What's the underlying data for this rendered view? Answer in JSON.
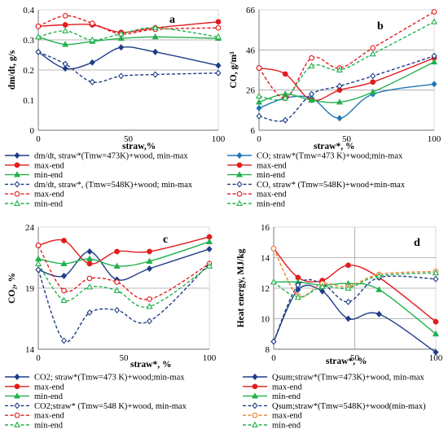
{
  "chart_data": [
    {
      "type": "line",
      "panel_label": "a",
      "ylabel": "dm/dt, g/s",
      "xlabel": "straw,%",
      "xlim": [
        0,
        100
      ],
      "ylim": [
        0.0,
        0.4
      ],
      "yticks": [
        0,
        0.1,
        0.2,
        0.3,
        0.4
      ],
      "yticklabels": [
        "0",
        "0.1",
        "0.2",
        "0.3",
        "0.4"
      ],
      "xticks": [
        0,
        50,
        100
      ],
      "xticklabels": [
        "0",
        "50",
        "100"
      ],
      "hgrid": [
        0.2,
        0.3
      ],
      "series": [
        {
          "name": "dm/dt, straw*(Tmw=473K)+wood, min-max",
          "color": "#1f3c88",
          "dash": false,
          "marker": "diamond",
          "x": [
            0,
            15,
            30,
            46,
            65,
            100
          ],
          "y": [
            0.26,
            0.205,
            0.225,
            0.275,
            0.26,
            0.215
          ]
        },
        {
          "name": "max-end",
          "color": "#e41a1c",
          "dash": false,
          "marker": "circle",
          "x": [
            0,
            15,
            30,
            46,
            65,
            100
          ],
          "y": [
            0.345,
            0.35,
            0.35,
            0.325,
            0.34,
            0.36
          ]
        },
        {
          "name": "min-end",
          "color": "#22b14c",
          "dash": false,
          "marker": "triangle",
          "x": [
            0,
            15,
            30,
            46,
            65,
            100
          ],
          "y": [
            0.31,
            0.285,
            0.295,
            0.305,
            0.31,
            0.305
          ]
        },
        {
          "name": "dm/dt, straw*, (Tmw=548K)+wood; min-max",
          "color": "#1f3c88",
          "dash": true,
          "marker": "diamond-open",
          "x": [
            0,
            15,
            30,
            46,
            65,
            100
          ],
          "y": [
            0.26,
            0.22,
            0.16,
            0.18,
            0.185,
            0.19
          ]
        },
        {
          "name": "max-end",
          "color": "#e41a1c",
          "dash": true,
          "marker": "circle-open",
          "x": [
            0,
            15,
            30,
            46,
            65,
            100
          ],
          "y": [
            0.345,
            0.38,
            0.355,
            0.32,
            0.335,
            0.34
          ]
        },
        {
          "name": "min-end",
          "color": "#22b14c",
          "dash": true,
          "marker": "triangle-open",
          "x": [
            0,
            15,
            30,
            46,
            65,
            100
          ],
          "y": [
            0.31,
            0.33,
            0.3,
            0.32,
            0.34,
            0.31
          ]
        }
      ]
    },
    {
      "type": "line",
      "panel_label": "b",
      "ylabel": "CO, g/m³",
      "xlabel": "straw*, %",
      "xlim": [
        0,
        100
      ],
      "ylim": [
        6,
        66
      ],
      "yticks": [
        6,
        26,
        46,
        66
      ],
      "yticklabels": [
        "6",
        "26",
        "46",
        "66"
      ],
      "xticks": [
        0,
        50,
        100
      ],
      "xticklabels": [
        "0",
        "50",
        "100"
      ],
      "hgrid": [
        26,
        46
      ],
      "series": [
        {
          "name": "CO; straw*(Tmw=473 K)+wood;min-max",
          "color": "#1f77b4",
          "dash": false,
          "marker": "diamond",
          "x": [
            0,
            15,
            30,
            46,
            65,
            100
          ],
          "y": [
            17,
            22,
            22,
            12,
            24,
            29
          ]
        },
        {
          "name": "max-end",
          "color": "#e41a1c",
          "dash": false,
          "marker": "circle",
          "x": [
            0,
            15,
            30,
            46,
            65,
            100
          ],
          "y": [
            37,
            34,
            21,
            26,
            30,
            42
          ]
        },
        {
          "name": "min-end",
          "color": "#22b14c",
          "dash": false,
          "marker": "triangle",
          "x": [
            0,
            15,
            30,
            46,
            65,
            100
          ],
          "y": [
            20,
            24,
            21,
            20,
            25,
            40
          ]
        },
        {
          "name": "CO, straw* (Tmw=548K)+wood+min-max",
          "color": "#1f3c88",
          "dash": true,
          "marker": "diamond-open",
          "x": [
            0,
            15,
            30,
            46,
            65,
            100
          ],
          "y": [
            13,
            11,
            24,
            28,
            33,
            43
          ]
        },
        {
          "name": "max-end",
          "color": "#e41a1c",
          "dash": true,
          "marker": "circle-open",
          "x": [
            0,
            15,
            30,
            46,
            65,
            100
          ],
          "y": [
            37,
            22,
            42,
            37,
            47,
            65
          ]
        },
        {
          "name": "min-end",
          "color": "#22b14c",
          "dash": true,
          "marker": "triangle-open",
          "x": [
            0,
            15,
            30,
            46,
            65,
            100
          ],
          "y": [
            23,
            22,
            38,
            36,
            44,
            60
          ]
        }
      ]
    },
    {
      "type": "line",
      "panel_label": "c",
      "ylabel": "CO₂, %",
      "xlabel": "straw*, %",
      "xlim": [
        0,
        100
      ],
      "ylim": [
        14,
        24
      ],
      "yticks": [
        14,
        19,
        24
      ],
      "yticklabels": [
        "14",
        "19",
        "24"
      ],
      "xticks": [
        0,
        50,
        100
      ],
      "xticklabels": [
        "0",
        "50",
        "100"
      ],
      "hgrid": [
        19
      ],
      "series": [
        {
          "name": "CO2; straw*(Tmw=473 K)+wood;min-max",
          "color": "#1f3c88",
          "dash": false,
          "marker": "diamond",
          "x": [
            0,
            15,
            30,
            46,
            65,
            100
          ],
          "y": [
            20.5,
            20.0,
            22.0,
            19.7,
            20.6,
            22.2
          ]
        },
        {
          "name": "max-end",
          "color": "#e41a1c",
          "dash": false,
          "marker": "circle",
          "x": [
            0,
            15,
            30,
            46,
            65,
            100
          ],
          "y": [
            22.5,
            22.9,
            21.0,
            22.0,
            22.0,
            23.2
          ]
        },
        {
          "name": "min-end",
          "color": "#22b14c",
          "dash": false,
          "marker": "triangle",
          "x": [
            0,
            15,
            30,
            46,
            65,
            100
          ],
          "y": [
            21.4,
            21.0,
            21.4,
            20.8,
            21.2,
            22.8
          ]
        },
        {
          "name": "CO2;straw* (Tmw=548 K)+wood, min-max",
          "color": "#1f3c88",
          "dash": true,
          "marker": "diamond-open",
          "x": [
            0,
            15,
            30,
            46,
            65,
            100
          ],
          "y": [
            20.5,
            14.7,
            17.0,
            17.2,
            16.3,
            21.0
          ]
        },
        {
          "name": "max-end",
          "color": "#e41a1c",
          "dash": true,
          "marker": "circle-open",
          "x": [
            0,
            15,
            30,
            46,
            65,
            100
          ],
          "y": [
            22.5,
            18.8,
            19.8,
            19.5,
            18.1,
            21.0
          ]
        },
        {
          "name": "min-end",
          "color": "#22b14c",
          "dash": true,
          "marker": "triangle-open",
          "x": [
            0,
            15,
            30,
            46,
            65,
            100
          ],
          "y": [
            21.0,
            18.0,
            19.1,
            18.8,
            17.5,
            20.8
          ]
        }
      ]
    },
    {
      "type": "line",
      "panel_label": "d",
      "ylabel": "Heat energy, MJ/kg",
      "xlabel": "straw*, %",
      "xlim": [
        0,
        100
      ],
      "ylim": [
        8,
        16
      ],
      "yticks": [
        8,
        10,
        12,
        14,
        16
      ],
      "yticklabels": [
        "8",
        "10",
        "12",
        "14",
        "16"
      ],
      "xticks": [
        0,
        50,
        100
      ],
      "xticklabels": [
        "0",
        "50",
        "100"
      ],
      "hgrid": [
        10,
        12,
        14
      ],
      "vgrid": [
        50
      ],
      "series": [
        {
          "name": "Qsum;straw*(Tmw=473K)+wood, min-max",
          "color": "#1f3c88",
          "dash": false,
          "marker": "diamond",
          "x": [
            0,
            15,
            30,
            46,
            65,
            100
          ],
          "y": [
            8.5,
            11.9,
            11.8,
            10.0,
            10.3,
            7.8
          ]
        },
        {
          "name": "max-end",
          "color": "#e41a1c",
          "dash": false,
          "marker": "circle",
          "x": [
            0,
            15,
            30,
            46,
            65,
            100
          ],
          "y": [
            14.6,
            12.7,
            12.5,
            13.5,
            12.7,
            9.8
          ]
        },
        {
          "name": "min-end",
          "color": "#22b14c",
          "dash": false,
          "marker": "triangle",
          "x": [
            0,
            15,
            30,
            46,
            65,
            100
          ],
          "y": [
            12.4,
            12.4,
            12.2,
            12.3,
            11.9,
            9.0
          ]
        },
        {
          "name": "Qsum;straw*(Tmw=548K)+wood(min-max)",
          "color": "#1f3c88",
          "dash": true,
          "marker": "diamond-open",
          "x": [
            0,
            15,
            30,
            46,
            65,
            100
          ],
          "y": [
            8.5,
            12.2,
            12.3,
            11.1,
            12.7,
            12.6
          ]
        },
        {
          "name": "max-end",
          "color": "#f08030",
          "dash": true,
          "marker": "circle-open",
          "x": [
            0,
            15,
            30,
            46,
            65,
            100
          ],
          "y": [
            14.6,
            11.5,
            12.3,
            12.1,
            12.9,
            13.1
          ]
        },
        {
          "name": "min-end",
          "color": "#22b14c",
          "dash": true,
          "marker": "triangle-open",
          "x": [
            0,
            15,
            30,
            46,
            65,
            100
          ],
          "y": [
            12.4,
            11.4,
            12.1,
            12.0,
            12.8,
            13.0
          ]
        }
      ]
    }
  ]
}
